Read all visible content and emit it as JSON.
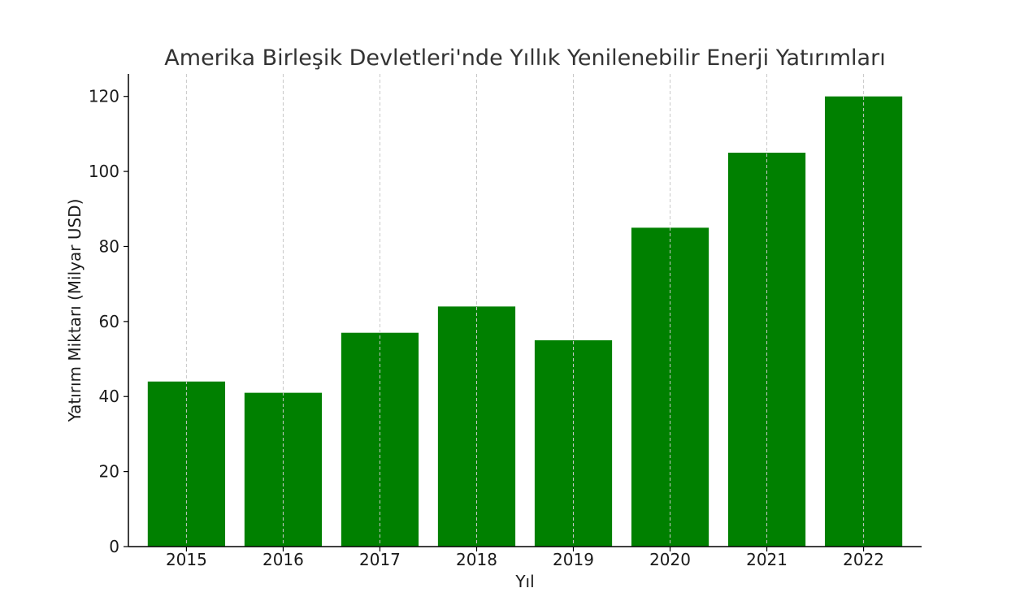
{
  "chart_data": {
    "type": "bar",
    "title": "Amerika Birleşik Devletleri'nde Yıllık Yenilenebilir Enerji Yatırımları",
    "xlabel": "Yıl",
    "ylabel": "Yatırım Miktarı (Milyar USD)",
    "categories": [
      "2015",
      "2016",
      "2017",
      "2018",
      "2019",
      "2020",
      "2021",
      "2022"
    ],
    "values": [
      44,
      41,
      57,
      64,
      55,
      85,
      105,
      120
    ],
    "ylim": [
      0,
      126
    ],
    "yticks": [
      0,
      20,
      40,
      60,
      80,
      100,
      120
    ],
    "grid": "vertical dashed",
    "bar_color": "#008000",
    "grid_color": "#c8c8c8"
  }
}
